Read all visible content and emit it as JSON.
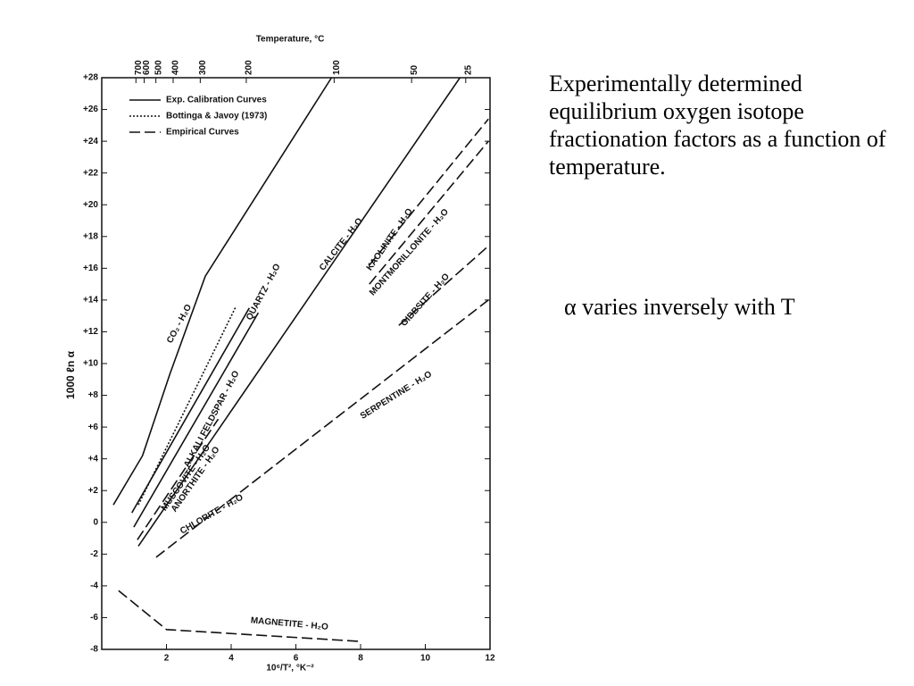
{
  "chart_data": {
    "type": "line",
    "x2label": "Temperature, °C",
    "ylabel": "1000 ℓn α",
    "xlabel": "10⁶/T², °K⁻²",
    "xlim": [
      0,
      12
    ],
    "xticks": [
      2,
      4,
      6,
      8,
      10,
      12
    ],
    "ylim": [
      -8,
      28
    ],
    "yticks": [
      -8,
      -6,
      -4,
      -2,
      0,
      {
        "value": 2,
        "label": "+2"
      },
      {
        "value": 4,
        "label": "+4"
      },
      {
        "value": 6,
        "label": "+6"
      },
      {
        "value": 8,
        "label": "+8"
      },
      {
        "value": 10,
        "label": "+10"
      },
      {
        "value": 12,
        "label": "+12"
      },
      {
        "value": 14,
        "label": "+14"
      },
      {
        "value": 16,
        "label": "+16"
      },
      {
        "value": 18,
        "label": "+18"
      },
      {
        "value": 20,
        "label": "+20"
      },
      {
        "value": 22,
        "label": "+22"
      },
      {
        "value": 24,
        "label": "+24"
      },
      {
        "value": 26,
        "label": "+26"
      },
      {
        "value": 28,
        "label": "+28"
      }
    ],
    "x2ticks": [
      700,
      600,
      500,
      400,
      300,
      200,
      100,
      50,
      25
    ],
    "legend": [
      {
        "label": "Exp. Calibration Curves",
        "dash": "solid"
      },
      {
        "label": "Bottinga & Javoy (1973)",
        "dash": "dotted"
      },
      {
        "label": "Empirical Curves",
        "dash": "dashed"
      }
    ],
    "series": [
      {
        "dash": "solid",
        "x": [
          0.36,
          1.26,
          2.1,
          3.2,
          7.1
        ],
        "values": [
          1.1,
          4.2,
          9.3,
          15.5,
          28
        ]
      },
      {
        "dash": "solid",
        "x": [
          0.93,
          4.56
        ],
        "values": [
          0.6,
          13.5
        ]
      },
      {
        "dash": "dotted",
        "x": [
          1.13,
          4.15
        ],
        "values": [
          1.1,
          13.6
        ]
      },
      {
        "dash": "solid",
        "x": [
          0.99,
          4.84
        ],
        "values": [
          -0.3,
          13.2
        ]
      },
      {
        "dash": "dashed",
        "x": [
          1.1,
          3.6
        ],
        "values": [
          -1.1,
          6.5
        ]
      },
      {
        "dash": "solid",
        "x": [
          1.13,
          11.07
        ],
        "values": [
          -1.5,
          28
        ]
      },
      {
        "dash": "dashed",
        "x": [
          1.68,
          11.95
        ],
        "values": [
          -2.2,
          14
        ]
      },
      {
        "dash": "dashed",
        "x": [
          8.27,
          11.95
        ],
        "values": [
          16.2,
          25.4
        ]
      },
      {
        "dash": "dashed",
        "x": [
          8.27,
          11.95
        ],
        "values": [
          15,
          24
        ]
      },
      {
        "dash": "dashed",
        "x": [
          9.18,
          11.95
        ],
        "values": [
          12.4,
          17.4
        ]
      },
      {
        "dash": "dashed",
        "x": [
          0.52,
          2,
          8
        ],
        "values": [
          -4.3,
          -6.75,
          -7.5
        ]
      }
    ],
    "annotations": [
      "CO₂ - H₂O",
      "QUARTZ - H₂O",
      "ALKALI FELDSPAR - H₂O",
      "MUSCOVITE - H₂O",
      "ANORTHITE - H₂O",
      "CALCITE - H₂O",
      "KAOLINITE - H₂O",
      "MONTMORILLONITE - H₂O",
      "GIBBSITE - H₂O",
      "SERPENTINE - H₂O",
      "CHLORITE - H₂O",
      "MAGNETITE - H₂O"
    ]
  },
  "text": {
    "caption": "Experimentally determined equilibrium oxygen isotope fractionation factors as a function of temperature.",
    "note": "α varies inversely with T"
  }
}
